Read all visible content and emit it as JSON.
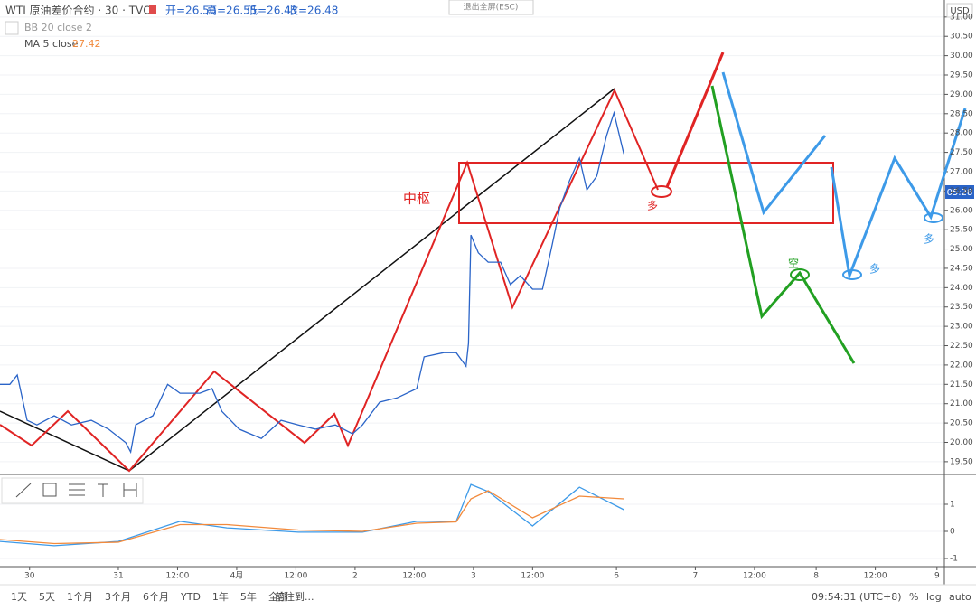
{
  "header": {
    "symbol": "WTI 原油差价合约 · 30 · TVC",
    "open": "开=26.50",
    "high": "高=26.55",
    "low": "低=26.43",
    "close": "收=26.48",
    "exit": "退出全屏(ESC)",
    "currency": "USD",
    "price_tag": "05:28"
  },
  "indicators": {
    "bb": "BB 20 close 2",
    "ma": "MA 5 close",
    "ma_value": "27.42"
  },
  "annotations": {
    "pivot": "中枢",
    "long_red": "多",
    "short_green": "空",
    "long_blue1": "多",
    "long_blue2": "多"
  },
  "toolbar": {
    "ranges": [
      "1天",
      "5天",
      "1个月",
      "3个月",
      "6个月",
      "YTD",
      "1年",
      "5年",
      "全部"
    ],
    "goto": "前往到...",
    "clock": "09:54:31 (UTC+8)",
    "percent": "%",
    "log": "log",
    "auto": "auto"
  },
  "chart_data": [
    {
      "type": "line",
      "xlim": [
        0,
        383
      ],
      "ylim": [
        19.17,
        31.44
      ],
      "yticks": [
        {
          "value": 19.5,
          "label": "19.50"
        },
        {
          "value": 20,
          "label": "20.00"
        },
        {
          "value": 20.5,
          "label": "20.50"
        },
        {
          "value": 21,
          "label": "21.00"
        },
        {
          "value": 21.5,
          "label": "21.50"
        },
        {
          "value": 22,
          "label": "22.00"
        },
        {
          "value": 22.5,
          "label": "22.50"
        },
        {
          "value": 23,
          "label": "23.00"
        },
        {
          "value": 23.5,
          "label": "23.50"
        },
        {
          "value": 24,
          "label": "24.00"
        },
        {
          "value": 24.5,
          "label": "24.50"
        },
        {
          "value": 25,
          "label": "25.00"
        },
        {
          "value": 25.5,
          "label": "25.50"
        },
        {
          "value": 26,
          "label": "26.00"
        },
        {
          "value": 26.5,
          "label": "26.50"
        },
        {
          "value": 27,
          "label": "27.00"
        },
        {
          "value": 27.5,
          "label": "27.50"
        },
        {
          "value": 28,
          "label": "28.00"
        },
        {
          "value": 28.5,
          "label": "28.50"
        },
        {
          "value": 29,
          "label": "29.00"
        },
        {
          "value": 29.5,
          "label": "29.50"
        },
        {
          "value": 30,
          "label": "30.00"
        },
        {
          "value": 30.5,
          "label": "30.50"
        },
        {
          "value": 31,
          "label": "31.00"
        }
      ],
      "x": [
        0,
        4,
        7,
        11,
        15,
        22,
        29,
        37,
        44,
        51,
        53,
        55,
        62,
        68,
        73,
        81,
        86,
        90,
        97,
        106,
        114,
        121,
        128,
        136,
        143,
        147,
        154,
        161,
        169,
        172,
        180,
        185,
        189,
        190,
        191,
        194,
        198,
        203,
        207,
        211,
        216,
        220,
        224,
        227,
        231,
        235,
        238,
        242,
        246,
        249,
        253
      ],
      "series": [
        {
          "color": "#2a64c8",
          "values": [
            21.5,
            21.5,
            21.74,
            20.57,
            20.45,
            20.69,
            20.45,
            20.57,
            20.34,
            19.99,
            19.75,
            20.45,
            20.69,
            21.5,
            21.27,
            21.27,
            21.39,
            20.8,
            20.34,
            20.1,
            20.57,
            20.45,
            20.34,
            20.45,
            20.22,
            20.45,
            21.04,
            21.15,
            21.39,
            22.21,
            22.32,
            22.32,
            21.97,
            22.56,
            25.36,
            24.9,
            24.66,
            24.66,
            24.08,
            24.31,
            23.96,
            23.96,
            25.13,
            26.06,
            26.77,
            27.35,
            26.53,
            26.88,
            27.93,
            28.52,
            27.46
          ]
        }
      ]
    },
    {
      "type": "line",
      "xlim": [
        0,
        383
      ],
      "ylim": [
        -1.3,
        2.1
      ],
      "yticks": [
        -1,
        0,
        1
      ],
      "xticks": [
        {
          "value": 12,
          "label": "30"
        },
        {
          "value": 48,
          "label": "31"
        },
        {
          "value": 72,
          "label": "12:00"
        },
        {
          "value": 96,
          "label": "4月"
        },
        {
          "value": 120,
          "label": "12:00"
        },
        {
          "value": 144,
          "label": "2"
        },
        {
          "value": 168,
          "label": "12:00"
        },
        {
          "value": 192,
          "label": "3"
        },
        {
          "value": 216,
          "label": "12:00"
        },
        {
          "value": 250,
          "label": "6"
        },
        {
          "value": 282,
          "label": "7"
        },
        {
          "value": 306,
          "label": "12:00"
        },
        {
          "value": 331,
          "label": "8"
        },
        {
          "value": 355,
          "label": "12:00"
        },
        {
          "value": 380,
          "label": "9"
        }
      ],
      "x": [
        0,
        22,
        48,
        73,
        92,
        121,
        147,
        169,
        185,
        191,
        198,
        216,
        235,
        253
      ],
      "series": [
        {
          "color": "#3d9ae8",
          "values": [
            -0.37,
            -0.53,
            -0.37,
            0.37,
            0.13,
            -0.03,
            -0.03,
            0.37,
            0.37,
            1.73,
            1.47,
            0.2,
            1.63,
            0.8
          ]
        },
        {
          "color": "#f28a3c",
          "values": [
            -0.3,
            -0.45,
            -0.4,
            0.25,
            0.25,
            0.05,
            0,
            0.3,
            0.35,
            1.2,
            1.5,
            0.5,
            1.3,
            1.2
          ]
        }
      ]
    }
  ]
}
